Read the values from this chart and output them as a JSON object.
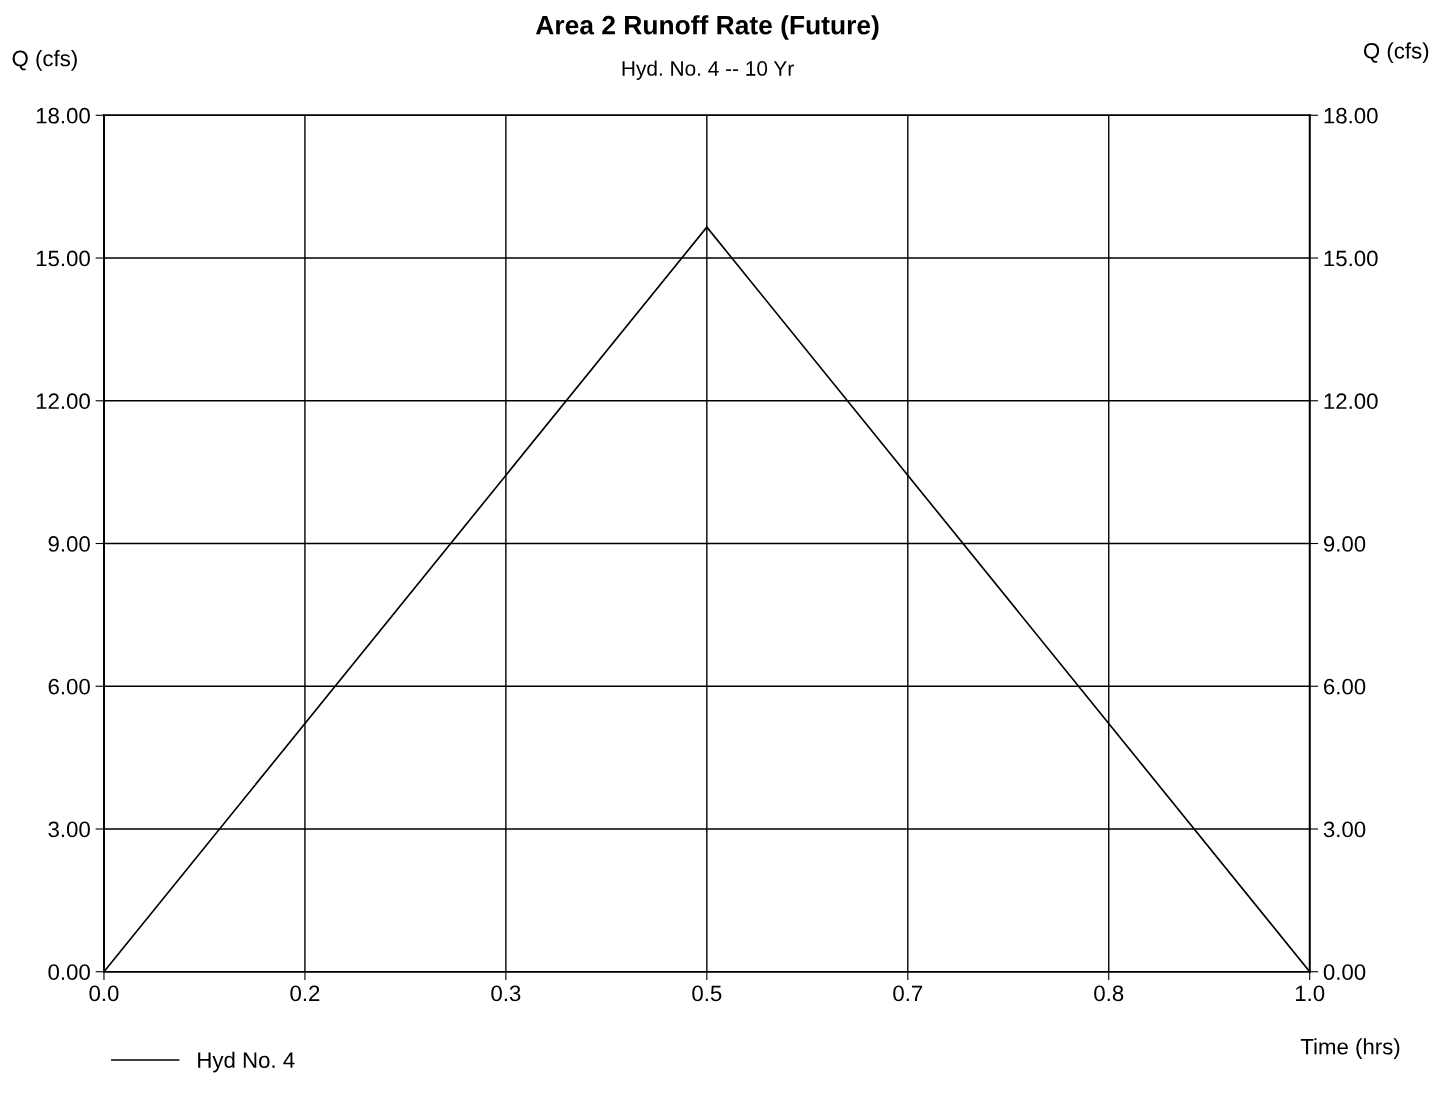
{
  "chart_data": {
    "type": "line",
    "title": "Area 2 Runoff Rate (Future)",
    "subtitle": "Hyd. No. 4 -- 10 Yr",
    "xlabel": "Time (hrs)",
    "ylabel": "Q (cfs)",
    "y2label": "Q (cfs)",
    "x": [
      0.0,
      0.5,
      1.0
    ],
    "series": [
      {
        "name": "Hyd No. 4",
        "color": "#000000",
        "values": [
          0.0,
          15.65,
          0.0
        ]
      }
    ],
    "xlim": [
      0.0,
      1.0
    ],
    "xticks": [
      {
        "value": 0.0,
        "label": "0.0"
      },
      {
        "value": 0.16667,
        "label": "0.2"
      },
      {
        "value": 0.33333,
        "label": "0.3"
      },
      {
        "value": 0.5,
        "label": "0.5"
      },
      {
        "value": 0.66667,
        "label": "0.7"
      },
      {
        "value": 0.83333,
        "label": "0.8"
      },
      {
        "value": 1.0,
        "label": "1.0"
      }
    ],
    "ylim": [
      0,
      18
    ],
    "yticks": [
      {
        "value": 0,
        "label": "0.00"
      },
      {
        "value": 3,
        "label": "3.00"
      },
      {
        "value": 6,
        "label": "6.00"
      },
      {
        "value": 9,
        "label": "9.00"
      },
      {
        "value": 12,
        "label": "12.00"
      },
      {
        "value": 15,
        "label": "15.00"
      },
      {
        "value": 18,
        "label": "18.00"
      }
    ],
    "y2lim": [
      0,
      18
    ],
    "y2ticks": [
      {
        "value": 0,
        "label": "0.00"
      },
      {
        "value": 3,
        "label": "3.00"
      },
      {
        "value": 6,
        "label": "6.00"
      },
      {
        "value": 9,
        "label": "9.00"
      },
      {
        "value": 12,
        "label": "12.00"
      },
      {
        "value": 15,
        "label": "15.00"
      },
      {
        "value": 18,
        "label": "18.00"
      }
    ],
    "grid": true,
    "legend": "bottom left",
    "marker": "none",
    "line_style": "solid"
  }
}
